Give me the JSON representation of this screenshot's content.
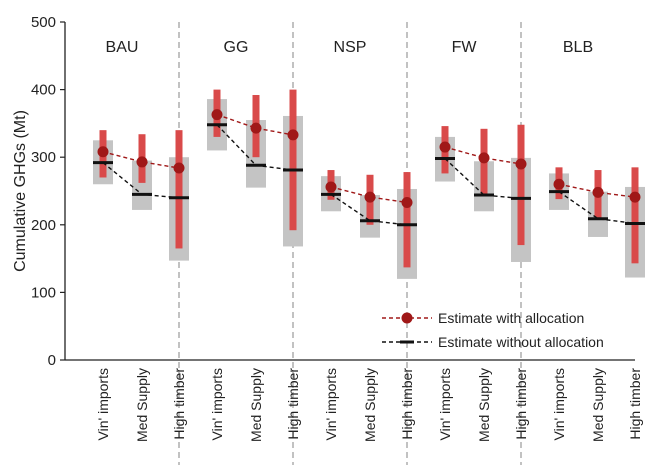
{
  "chart_data": {
    "type": "range-point",
    "ylabel": "Cumulative GHGs (Mt)",
    "ylim": [
      0,
      500
    ],
    "yticks": [
      0,
      100,
      200,
      300,
      400,
      500
    ],
    "grid": false,
    "legend_position": "bottom-right",
    "categories": [
      "Vin' imports",
      "Med Supply",
      "High timber"
    ],
    "groups": [
      {
        "name": "BAU",
        "with_allocation": [
          308,
          293,
          284
        ],
        "with_allocation_range": [
          [
            270,
            340
          ],
          [
            262,
            334
          ],
          [
            165,
            340
          ]
        ],
        "without_allocation": [
          292,
          245,
          240
        ],
        "without_allocation_range": [
          [
            260,
            325
          ],
          [
            222,
            295
          ],
          [
            147,
            300
          ]
        ]
      },
      {
        "name": "GG",
        "with_allocation": [
          363,
          343,
          333
        ],
        "with_allocation_range": [
          [
            330,
            400
          ],
          [
            300,
            392
          ],
          [
            192,
            400
          ]
        ],
        "without_allocation": [
          348,
          288,
          281
        ],
        "without_allocation_range": [
          [
            310,
            386
          ],
          [
            255,
            355
          ],
          [
            168,
            361
          ]
        ]
      },
      {
        "name": "NSP",
        "with_allocation": [
          256,
          241,
          233
        ],
        "with_allocation_range": [
          [
            237,
            281
          ],
          [
            200,
            274
          ],
          [
            137,
            278
          ]
        ],
        "without_allocation": [
          245,
          206,
          200
        ],
        "without_allocation_range": [
          [
            220,
            272
          ],
          [
            181,
            244
          ],
          [
            120,
            253
          ]
        ]
      },
      {
        "name": "FW",
        "with_allocation": [
          315,
          299,
          290
        ],
        "with_allocation_range": [
          [
            276,
            346
          ],
          [
            245,
            342
          ],
          [
            170,
            348
          ]
        ],
        "without_allocation": [
          298,
          244,
          239
        ],
        "without_allocation_range": [
          [
            264,
            330
          ],
          [
            220,
            294
          ],
          [
            145,
            299
          ]
        ]
      },
      {
        "name": "BLB",
        "with_allocation": [
          260,
          248,
          241
        ],
        "with_allocation_range": [
          [
            238,
            285
          ],
          [
            210,
            281
          ],
          [
            143,
            285
          ]
        ],
        "without_allocation": [
          249,
          209,
          202
        ],
        "without_allocation_range": [
          [
            222,
            276
          ],
          [
            182,
            249
          ],
          [
            122,
            256
          ]
        ]
      }
    ],
    "series": [
      {
        "name": "Estimate with allocation",
        "color": "#a01818",
        "range_color": "#d94a4a"
      },
      {
        "name": "Estimate without allocation",
        "color": "#111111",
        "range_color": "#c4c4c4"
      }
    ]
  }
}
